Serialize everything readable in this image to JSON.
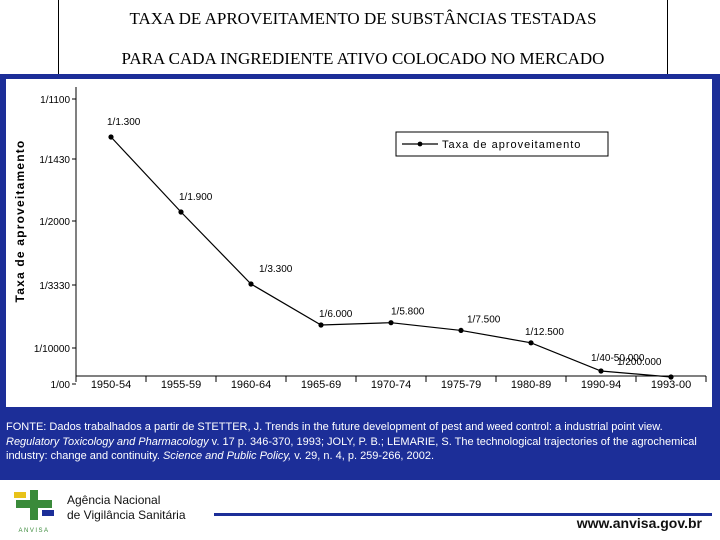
{
  "header": {
    "line1": "TAXA DE APROVEITAMENTO DE SUBSTÂNCIAS TESTADAS",
    "line2": "PARA CADA  INGREDIENTE ATIVO COLOCADO NO MERCADO"
  },
  "chart_data": {
    "type": "line",
    "title": "",
    "xlabel": "",
    "ylabel": "Taxa de aproveitamento",
    "categories": [
      "1950-54",
      "1955-59",
      "1960-64",
      "1965-69",
      "1970-74",
      "1975-79",
      "1980-89",
      "1990-94",
      "1993-00"
    ],
    "y_ticks": [
      "1/1100",
      "1/1430",
      "1/2000",
      "1/3330",
      "1/10000",
      "1/00"
    ],
    "series": [
      {
        "name": "Taxa de aproveitamento",
        "values": [
          1300,
          1900,
          3300,
          6000,
          5800,
          7500,
          12500,
          40000,
          200000
        ],
        "labels": [
          "1/1.300",
          "1/1.900",
          "1/3.300",
          "1/6.000",
          "1/5.800",
          "1/7.500",
          "1/12.500",
          "1/40-50.000",
          "1/200.000"
        ]
      }
    ],
    "scale": "reciprocal, decreasing downward",
    "legend_position": "top-right",
    "grid": false
  },
  "source": {
    "prefix": "FONTE: Dados trabalhados a partir de STETTER, J. Trends in the future development of pest and weed control: a industrial point view.",
    "journal1": "Regulatory Toxicology and Pharmacology",
    "mid": "v. 17 p. 346-370, 1993; JOLY, P. B.; LEMARIE, S. The technological trajectories of the agrochemical industry: change and continuity.",
    "journal2": "Science and Public Policy,",
    "suffix": "v. 29, n. 4, p. 259-266, 2002."
  },
  "footer": {
    "agency_line1": "Agência Nacional",
    "agency_line2": "de Vigilância Sanitária",
    "logo_text": "ANVISA",
    "website": "www.anvisa.gov.br"
  },
  "colors": {
    "band": "#1c2e98",
    "logo_green": "#3a8a3a",
    "logo_yellow": "#e8c21a",
    "logo_blue": "#1c2e98"
  }
}
